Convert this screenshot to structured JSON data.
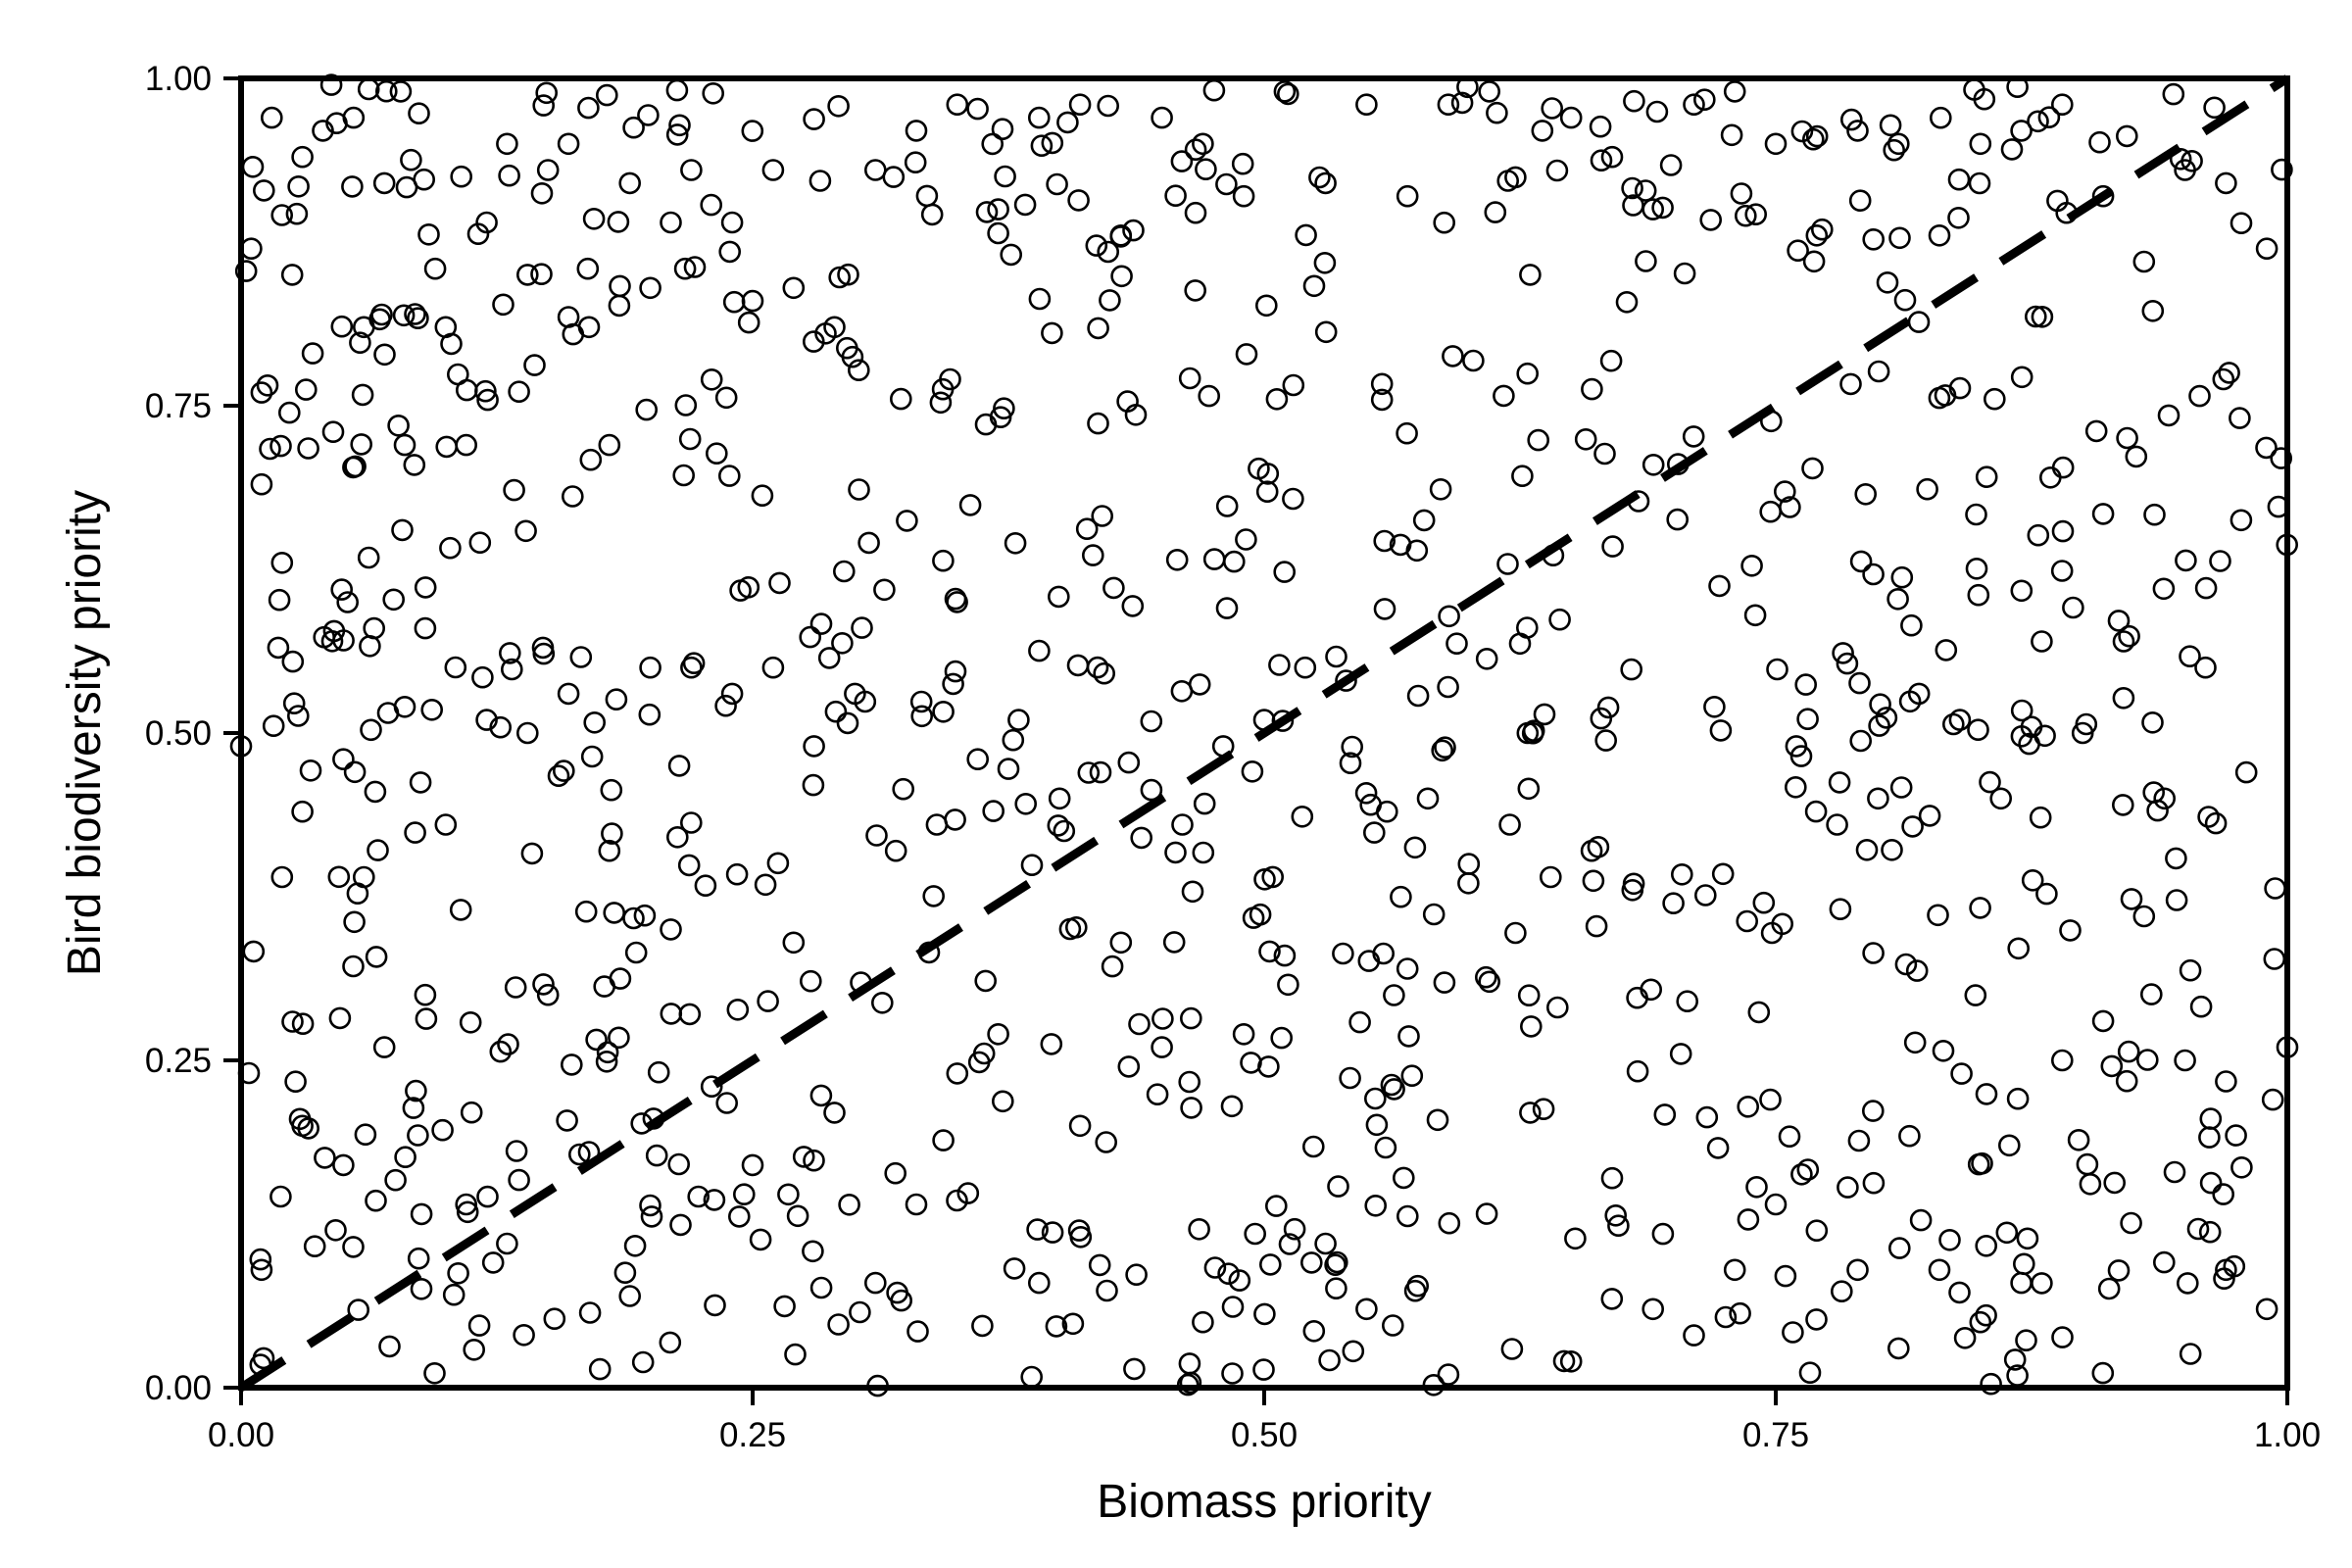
{
  "chart_data": {
    "type": "scatter",
    "title": "",
    "xlabel": "Biomass priority",
    "ylabel": "Bird biodiversity priority",
    "xlim": [
      0,
      1
    ],
    "ylim": [
      0,
      1
    ],
    "x_ticks": [
      0,
      0.25,
      0.5,
      0.75,
      1
    ],
    "y_ticks": [
      0,
      0.25,
      0.5,
      0.75,
      1
    ],
    "x_tick_labels": [
      "0.00",
      "0.25",
      "0.50",
      "0.75",
      "1.00"
    ],
    "y_tick_labels": [
      "0.00",
      "0.25",
      "0.50",
      "0.75",
      "1.00"
    ],
    "grid": false,
    "legend": "none",
    "marker": "open-circle",
    "marker_color": "#000000",
    "reference_line": {
      "style": "dashed",
      "from": [
        0,
        0
      ],
      "to": [
        1,
        1
      ],
      "color": "#000000"
    },
    "points_count": 1000,
    "points_generation_seed": 20240611,
    "points_sample": [
      [
        0.005,
        0.87
      ],
      [
        0.01,
        0.76
      ],
      [
        0.01,
        0.69
      ],
      [
        0.015,
        0.97
      ],
      [
        0.02,
        0.63
      ],
      [
        0.025,
        0.85
      ],
      [
        0.03,
        0.94
      ],
      [
        0.035,
        0.79
      ],
      [
        0.04,
        0.96
      ],
      [
        0.045,
        0.73
      ],
      [
        0.055,
        0.97
      ],
      [
        0.06,
        0.81
      ],
      [
        0.065,
        0.58
      ],
      [
        0.07,
        0.92
      ],
      [
        0.078,
        0.99
      ],
      [
        0.08,
        0.72
      ],
      [
        0.085,
        0.82
      ],
      [
        0.09,
        0.58
      ],
      [
        0.1,
        0.81
      ],
      [
        0.11,
        0.72
      ],
      [
        0.12,
        0.89
      ],
      [
        0.13,
        0.95
      ],
      [
        0.14,
        0.85
      ],
      [
        0.15,
        0.93
      ],
      [
        0.16,
        0.95
      ],
      [
        0.17,
        0.81
      ],
      [
        0.18,
        0.72
      ],
      [
        0.19,
        0.92
      ],
      [
        0.2,
        0.84
      ],
      [
        0.21,
        0.89
      ],
      [
        0.22,
        0.93
      ],
      [
        0.23,
        0.77
      ],
      [
        0.24,
        0.89
      ],
      [
        0.25,
        0.83
      ],
      [
        0.26,
        0.93
      ],
      [
        0.27,
        0.84
      ],
      [
        0.29,
        0.81
      ],
      [
        0.31,
        0.93
      ],
      [
        0.33,
        0.96
      ],
      [
        0.35,
        0.98
      ],
      [
        0.37,
        0.9
      ],
      [
        0.39,
        0.97
      ],
      [
        0.41,
        0.98
      ],
      [
        0.43,
        0.88
      ],
      [
        0.45,
        0.97
      ],
      [
        0.47,
        0.95
      ],
      [
        0.49,
        0.91
      ],
      [
        0.51,
        0.99
      ],
      [
        0.53,
        0.92
      ],
      [
        0.55,
        0.98
      ],
      [
        0.57,
        0.91
      ],
      [
        0.59,
        0.98
      ],
      [
        0.61,
        0.99
      ],
      [
        0.63,
        0.85
      ],
      [
        0.65,
        0.97
      ],
      [
        0.67,
        0.94
      ],
      [
        0.69,
        0.9
      ],
      [
        0.71,
        0.98
      ],
      [
        0.73,
        0.99
      ],
      [
        0.75,
        0.95
      ],
      [
        0.77,
        0.88
      ],
      [
        0.79,
        0.96
      ],
      [
        0.81,
        0.95
      ],
      [
        0.83,
        0.88
      ],
      [
        0.85,
        0.95
      ],
      [
        0.87,
        0.96
      ],
      [
        0.89,
        0.98
      ],
      [
        0.91,
        0.91
      ],
      [
        0.93,
        0.86
      ],
      [
        0.95,
        0.93
      ],
      [
        0.97,
        0.92
      ],
      [
        0.99,
        0.87
      ],
      [
        0.0,
        0.49
      ],
      [
        0.02,
        0.39
      ],
      [
        0.03,
        0.44
      ],
      [
        0.05,
        0.48
      ],
      [
        0.06,
        0.39
      ],
      [
        0.08,
        0.52
      ],
      [
        0.1,
        0.43
      ],
      [
        0.12,
        0.51
      ],
      [
        0.14,
        0.5
      ],
      [
        0.16,
        0.53
      ],
      [
        0.18,
        0.41
      ],
      [
        0.2,
        0.55
      ],
      [
        0.22,
        0.55
      ],
      [
        0.24,
        0.53
      ],
      [
        0.26,
        0.55
      ],
      [
        0.28,
        0.49
      ],
      [
        0.3,
        0.53
      ],
      [
        0.32,
        0.41
      ],
      [
        0.34,
        0.43
      ],
      [
        0.36,
        0.48
      ],
      [
        0.38,
        0.51
      ],
      [
        0.4,
        0.45
      ],
      [
        0.42,
        0.47
      ],
      [
        0.44,
        0.42
      ],
      [
        0.46,
        0.43
      ],
      [
        0.48,
        0.49
      ],
      [
        0.5,
        0.51
      ],
      [
        0.52,
        0.55
      ],
      [
        0.54,
        0.54
      ],
      [
        0.56,
        0.44
      ],
      [
        0.58,
        0.45
      ],
      [
        0.6,
        0.4
      ],
      [
        0.62,
        0.43
      ],
      [
        0.64,
        0.39
      ],
      [
        0.66,
        0.41
      ],
      [
        0.68,
        0.38
      ],
      [
        0.7,
        0.37
      ],
      [
        0.72,
        0.52
      ],
      [
        0.74,
        0.59
      ],
      [
        0.76,
        0.49
      ],
      [
        0.78,
        0.43
      ],
      [
        0.8,
        0.45
      ],
      [
        0.82,
        0.53
      ],
      [
        0.84,
        0.51
      ],
      [
        0.86,
        0.45
      ],
      [
        0.88,
        0.57
      ],
      [
        0.9,
        0.5
      ],
      [
        0.92,
        0.57
      ],
      [
        0.94,
        0.45
      ],
      [
        0.96,
        0.55
      ],
      [
        0.98,
        0.47
      ],
      [
        1.0,
        0.26
      ],
      [
        0.01,
        0.09
      ],
      [
        0.03,
        0.2
      ],
      [
        0.05,
        0.17
      ],
      [
        0.07,
        0.26
      ],
      [
        0.09,
        0.3
      ],
      [
        0.11,
        0.14
      ],
      [
        0.13,
        0.11
      ],
      [
        0.15,
        0.3
      ],
      [
        0.17,
        0.18
      ],
      [
        0.19,
        0.07
      ],
      [
        0.21,
        0.35
      ],
      [
        0.23,
        0.23
      ],
      [
        0.25,
        0.17
      ],
      [
        0.27,
        0.34
      ],
      [
        0.29,
        0.21
      ],
      [
        0.31,
        0.08
      ],
      [
        0.33,
        0.14
      ],
      [
        0.35,
        0.24
      ],
      [
        0.37,
        0.27
      ],
      [
        0.39,
        0.08
      ],
      [
        0.41,
        0.2
      ],
      [
        0.43,
        0.34
      ],
      [
        0.45,
        0.26
      ],
      [
        0.47,
        0.05
      ],
      [
        0.49,
        0.27
      ],
      [
        0.51,
        0.33
      ],
      [
        0.53,
        0.11
      ],
      [
        0.55,
        0.06
      ],
      [
        0.57,
        0.32
      ],
      [
        0.59,
        0.01
      ],
      [
        0.61,
        0.31
      ],
      [
        0.63,
        0.21
      ],
      [
        0.65,
        0.02
      ],
      [
        0.67,
        0.16
      ],
      [
        0.69,
        0.06
      ],
      [
        0.71,
        0.04
      ],
      [
        0.73,
        0.09
      ],
      [
        0.75,
        0.14
      ],
      [
        0.77,
        0.12
      ],
      [
        0.79,
        0.09
      ],
      [
        0.81,
        0.03
      ],
      [
        0.83,
        0.09
      ],
      [
        0.85,
        0.05
      ],
      [
        0.87,
        0.08
      ],
      [
        0.89,
        0.25
      ],
      [
        0.91,
        0.28
      ],
      [
        0.93,
        0.36
      ],
      [
        0.95,
        0.25
      ],
      [
        0.97,
        0.09
      ],
      [
        0.99,
        0.06
      ]
    ]
  }
}
